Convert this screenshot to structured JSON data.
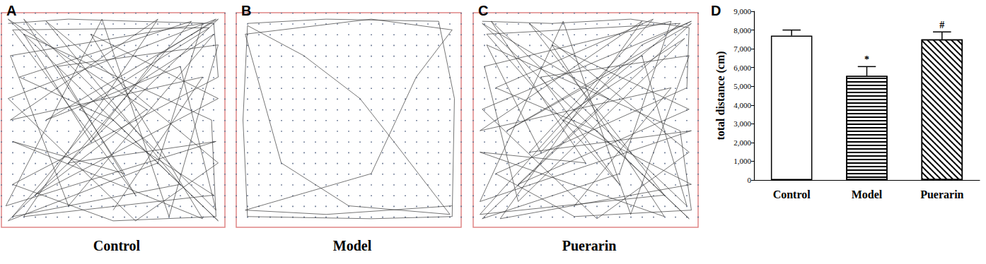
{
  "chart_data": [
    {
      "type": "line",
      "annotations": [
        "A"
      ],
      "title": "Control",
      "color": "#333333",
      "x": [
        3,
        30,
        60,
        95,
        97,
        5,
        50,
        96,
        94,
        10,
        40,
        70,
        96,
        3,
        60,
        97,
        20,
        80,
        5,
        50,
        95,
        30,
        4,
        90,
        70,
        3,
        97,
        20,
        80,
        96,
        10,
        55,
        5,
        90,
        40,
        97,
        15,
        65,
        3,
        97,
        50,
        8,
        85,
        30,
        96,
        2,
        45,
        75,
        97,
        25,
        60,
        5,
        93,
        35,
        95,
        10,
        70,
        4,
        90,
        50
      ],
      "values": [
        95,
        97,
        96,
        95,
        70,
        20,
        3,
        5,
        50,
        90,
        40,
        80,
        97,
        60,
        3,
        30,
        96,
        20,
        5,
        60,
        90,
        10,
        80,
        95,
        30,
        3,
        97,
        50,
        75,
        8,
        97,
        25,
        40,
        4,
        90,
        60,
        15,
        55,
        97,
        3,
        50,
        70,
        96,
        30,
        40,
        10,
        97,
        5,
        85,
        75,
        15,
        92,
        93,
        55,
        15,
        5,
        97,
        50,
        70,
        8
      ],
      "xlim": [
        0,
        100
      ],
      "ylim": [
        0,
        100
      ],
      "xticks": [
        0,
        5,
        10,
        15,
        20,
        25,
        30,
        35,
        40,
        45,
        50,
        55,
        60,
        65,
        70,
        75,
        80,
        85,
        90,
        95,
        100
      ],
      "yticks": [
        0,
        5,
        10,
        15,
        20,
        25,
        30,
        35,
        40,
        45,
        50,
        55,
        60,
        65,
        70,
        75,
        80,
        85,
        90,
        95,
        100
      ],
      "grid": true,
      "tick_labels": false
    },
    {
      "type": "line",
      "annotations": [
        "B"
      ],
      "title": "Model",
      "color": "#333333",
      "x": [
        5,
        40,
        90,
        97,
        96,
        60,
        5,
        3,
        5,
        30,
        55,
        70,
        95,
        50,
        20,
        4,
        60,
        96,
        80,
        60,
        4,
        40,
        96
      ],
      "values": [
        95,
        97,
        96,
        60,
        5,
        4,
        5,
        50,
        94,
        80,
        60,
        40,
        6,
        10,
        30,
        90,
        97,
        92,
        70,
        25,
        8,
        6,
        10
      ],
      "xlim": [
        0,
        100
      ],
      "ylim": [
        0,
        100
      ],
      "xticks": [
        0,
        5,
        10,
        15,
        20,
        25,
        30,
        35,
        40,
        45,
        50,
        55,
        60,
        65,
        70,
        75,
        80,
        85,
        90,
        95,
        100
      ],
      "yticks": [
        0,
        5,
        10,
        15,
        20,
        25,
        30,
        35,
        40,
        45,
        50,
        55,
        60,
        65,
        70,
        75,
        80,
        85,
        90,
        95,
        100
      ],
      "grid": true,
      "tick_labels": false
    },
    {
      "type": "line",
      "annotations": [
        "C"
      ],
      "title": "Puerarin",
      "color": "#333333",
      "x": [
        4,
        35,
        70,
        96,
        95,
        10,
        45,
        97,
        92,
        6,
        30,
        75,
        97,
        4,
        55,
        96,
        25,
        85,
        3,
        45,
        94,
        20,
        5,
        88,
        65,
        4,
        97,
        15,
        75,
        95,
        8,
        50,
        3,
        85,
        35,
        96,
        20,
        60,
        4,
        96,
        55,
        10,
        80,
        25,
        97,
        3,
        40,
        70,
        96,
        30,
        65,
        6,
        92,
        40,
        97,
        12,
        75,
        3,
        88,
        45
      ],
      "values": [
        96,
        95,
        97,
        93,
        65,
        25,
        5,
        8,
        45,
        85,
        35,
        85,
        96,
        55,
        4,
        35,
        95,
        15,
        6,
        55,
        88,
        12,
        75,
        96,
        25,
        4,
        95,
        45,
        80,
        10,
        96,
        30,
        35,
        5,
        85,
        55,
        20,
        60,
        95,
        4,
        45,
        65,
        97,
        35,
        45,
        12,
        96,
        6,
        80,
        70,
        20,
        90,
        95,
        50,
        20,
        4,
        96,
        45,
        65,
        10
      ],
      "xlim": [
        0,
        100
      ],
      "ylim": [
        0,
        100
      ],
      "xticks": [
        0,
        5,
        10,
        15,
        20,
        25,
        30,
        35,
        40,
        45,
        50,
        55,
        60,
        65,
        70,
        75,
        80,
        85,
        90,
        95,
        100
      ],
      "yticks": [
        0,
        5,
        10,
        15,
        20,
        25,
        30,
        35,
        40,
        45,
        50,
        55,
        60,
        65,
        70,
        75,
        80,
        85,
        90,
        95,
        100
      ],
      "grid": true,
      "tick_labels": false
    },
    {
      "type": "bar",
      "annotations": [
        "D"
      ],
      "y_label": "total distance (cm)",
      "categories": [
        "Control",
        "Model",
        "Puerarin"
      ],
      "values": [
        7700,
        5550,
        7500
      ],
      "errors": [
        300,
        500,
        400
      ],
      "significance": [
        null,
        "*",
        "#"
      ],
      "colors": [
        "#ffffff",
        "#ffffff",
        "#ffffff"
      ],
      "ylim": [
        0,
        9000
      ],
      "yticks": [
        0,
        1000,
        2000,
        3000,
        4000,
        5000,
        6000,
        7000,
        8000,
        9000
      ],
      "grid": false
    }
  ]
}
